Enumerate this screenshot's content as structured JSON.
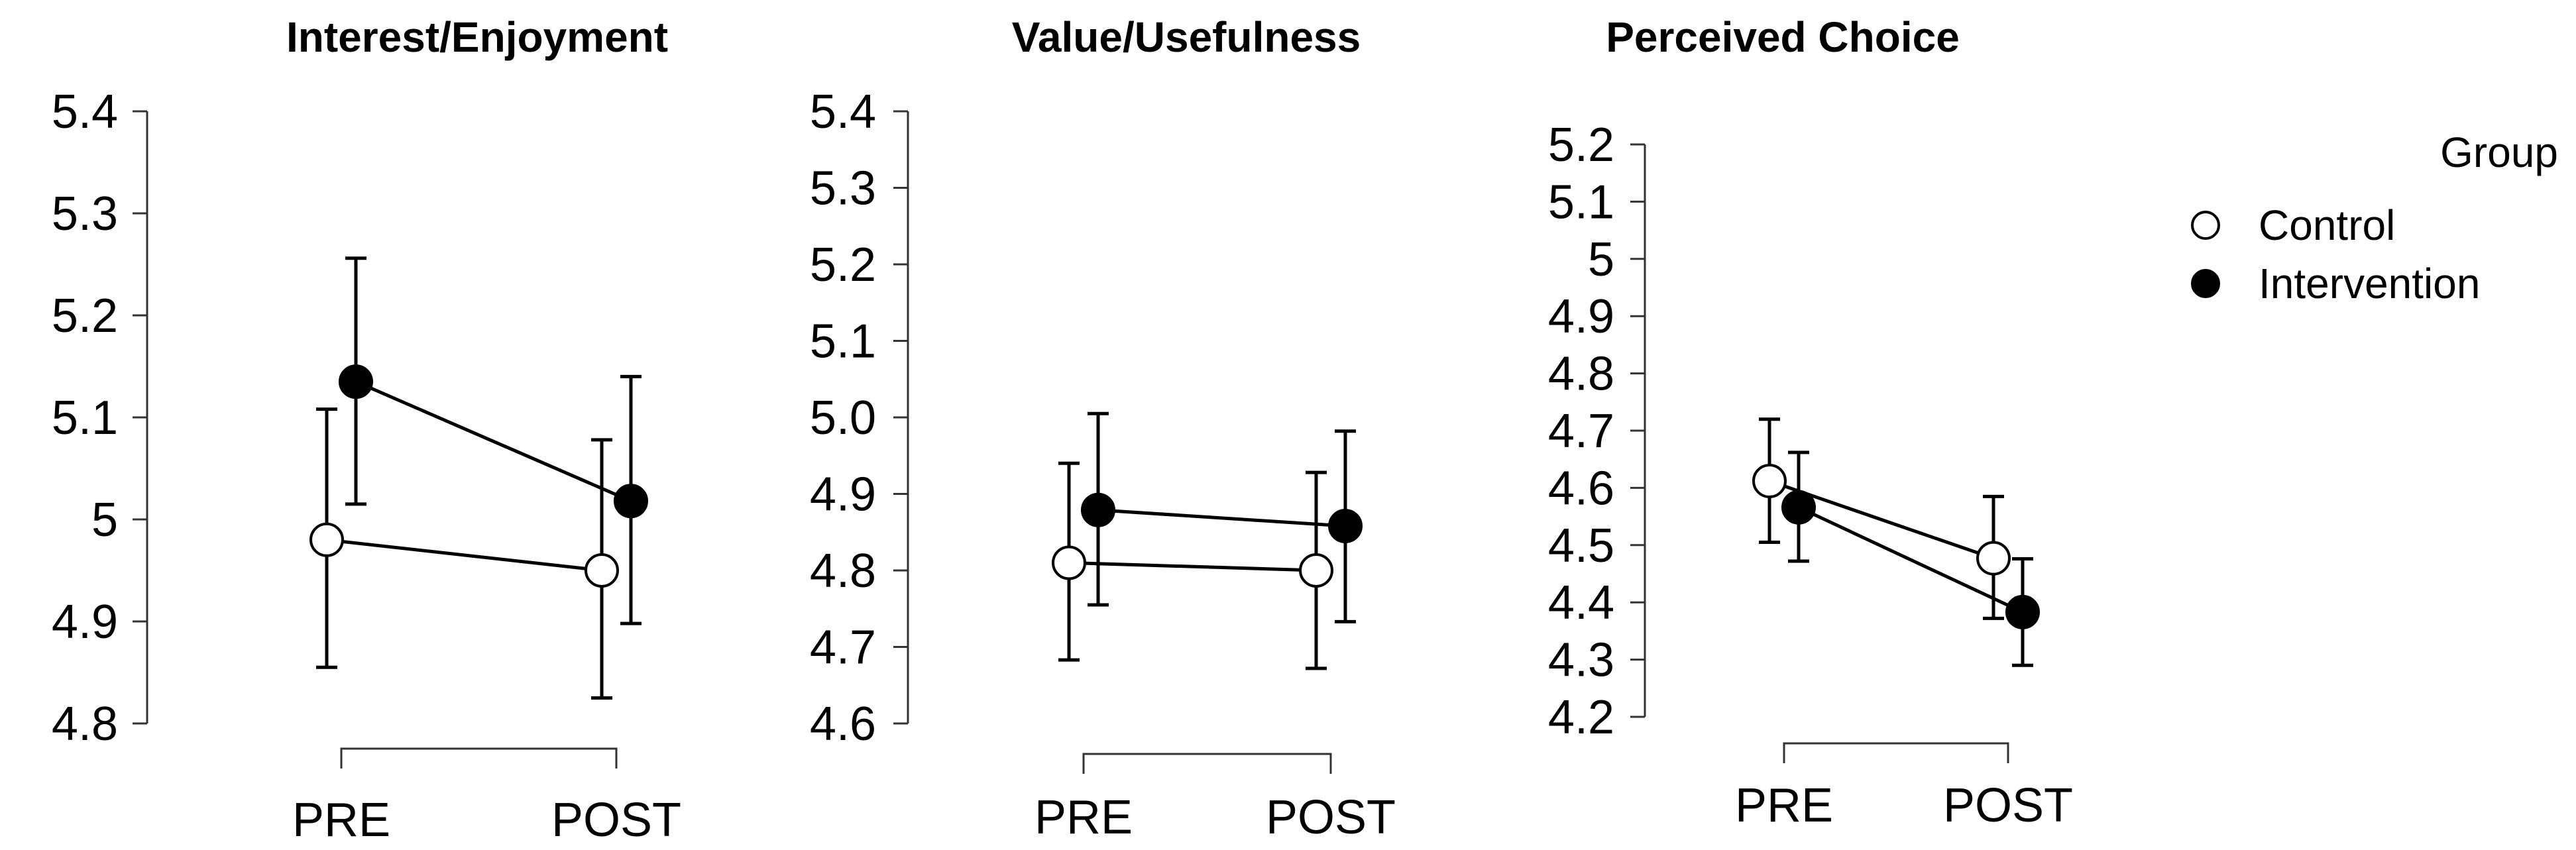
{
  "chart_data": [
    {
      "type": "line",
      "title": "Interest/Enjoyment",
      "categories": [
        "PRE",
        "POST"
      ],
      "yticks": [
        "4.8",
        "4.9",
        "5",
        "5.1",
        "5.2",
        "5.3",
        "5.4"
      ],
      "ylim": [
        4.8,
        5.4
      ],
      "series": [
        {
          "name": "Control",
          "values": [
            4.98,
            4.95
          ],
          "err_low": [
            4.855,
            4.825
          ],
          "err_high": [
            5.108,
            5.078
          ]
        },
        {
          "name": "Intervention",
          "values": [
            5.135,
            5.018
          ],
          "err_low": [
            5.015,
            4.898
          ],
          "err_high": [
            5.256,
            5.14
          ]
        }
      ]
    },
    {
      "type": "line",
      "title": "Value/Usefulness",
      "categories": [
        "PRE",
        "POST"
      ],
      "yticks": [
        "4.6",
        "4.7",
        "4.8",
        "4.9",
        "5.0",
        "5.1",
        "5.2",
        "5.3",
        "5.4"
      ],
      "ylim": [
        4.6,
        5.4
      ],
      "series": [
        {
          "name": "Control",
          "values": [
            4.81,
            4.8
          ],
          "err_low": [
            4.683,
            4.672
          ],
          "err_high": [
            4.94,
            4.928
          ]
        },
        {
          "name": "Intervention",
          "values": [
            4.879,
            4.858
          ],
          "err_low": [
            4.755,
            4.733
          ],
          "err_high": [
            5.005,
            4.982
          ]
        }
      ]
    },
    {
      "type": "line",
      "title": "Perceived Choice",
      "categories": [
        "PRE",
        "POST"
      ],
      "yticks": [
        "4.2",
        "4.3",
        "4.4",
        "4.5",
        "4.6",
        "4.7",
        "4.8",
        "4.9",
        "5",
        "5.1",
        "5.2"
      ],
      "ylim": [
        4.2,
        5.2
      ],
      "series": [
        {
          "name": "Control",
          "values": [
            4.612,
            4.477
          ],
          "err_low": [
            4.505,
            4.372
          ],
          "err_high": [
            4.72,
            4.585
          ]
        },
        {
          "name": "Intervention",
          "values": [
            4.566,
            4.383
          ],
          "err_low": [
            4.472,
            4.29
          ],
          "err_high": [
            4.662,
            4.476
          ]
        }
      ]
    }
  ],
  "legend": {
    "title": "Group",
    "placement": "top-right",
    "items": [
      {
        "label": "Control",
        "fill": "#ffffff"
      },
      {
        "label": "Intervention",
        "fill": "#000000"
      }
    ]
  }
}
